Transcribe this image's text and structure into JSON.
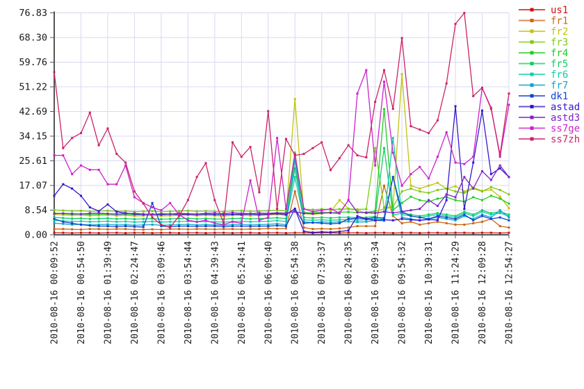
{
  "chart_data": {
    "type": "line",
    "title": "",
    "xlabel": "",
    "ylabel": "",
    "ylim": [
      0,
      76.83
    ],
    "grid": true,
    "legend_position": "top-right-outside",
    "colors": {
      "grid": "#d8d8f0",
      "axis": "#555555",
      "tick_label": "#1a1a1a",
      "background": "#ffffff"
    },
    "ytick_labels": [
      "0.00",
      "8.54",
      "17.07",
      "25.61",
      "34.15",
      "42.69",
      "51.22",
      "59.76",
      "68.30",
      "76.83"
    ],
    "ytick_values": [
      0,
      8.537,
      17.073,
      25.61,
      34.147,
      42.683,
      51.22,
      59.757,
      68.293,
      76.83
    ],
    "xtick_labels": [
      "2010-08-16 00:09:52",
      "2010-08-16 00:54:50",
      "2010-08-16 01:39:49",
      "2010-08-16 02:24:47",
      "2010-08-16 03:09:46",
      "2010-08-16 03:54:44",
      "2010-08-16 04:39:43",
      "2010-08-16 05:24:41",
      "2010-08-16 06:09:40",
      "2010-08-16 06:54:38",
      "2010-08-16 07:39:37",
      "2010-08-16 08:24:35",
      "2010-08-16 09:09:34",
      "2010-08-16 09:54:32",
      "2010-08-16 10:39:31",
      "2010-08-16 11:24:29",
      "2010-08-16 12:09:28",
      "2010-08-16 12:54:27"
    ],
    "points_per_tick": 3,
    "n_points": 52,
    "series": [
      {
        "name": "us1",
        "color": "#cc1111",
        "values": [
          0.7,
          0.7,
          0.6,
          0.7,
          0.7,
          0.6,
          0.7,
          0.7,
          0.6,
          0.7,
          0.7,
          0.6,
          0.7,
          0.7,
          0.6,
          0.7,
          0.7,
          0.6,
          0.7,
          0.7,
          0.6,
          0.7,
          0.7,
          0.6,
          0.7,
          0.7,
          0.6,
          0.7,
          0.7,
          0.6,
          0.7,
          0.7,
          0.6,
          0.7,
          0.7,
          0.6,
          0.7,
          0.7,
          0.6,
          0.7,
          0.7,
          0.6,
          0.7,
          0.7,
          0.6,
          0.7,
          0.7,
          0.6,
          0.7,
          0.7,
          0.6,
          0.7
        ]
      },
      {
        "name": "fr1",
        "color": "#cc6611",
        "values": [
          2,
          2,
          1.9,
          1.8,
          2,
          2,
          1.9,
          2,
          2,
          1.8,
          1.8,
          1.9,
          1.8,
          2,
          2,
          1.9,
          2,
          2,
          1.9,
          2,
          2,
          1.9,
          2,
          2,
          2.2,
          2.1,
          2.2,
          15,
          2.5,
          2,
          2.1,
          2,
          2.2,
          2.5,
          3,
          3,
          3,
          17,
          6.5,
          4,
          4.5,
          3.5,
          4,
          4.5,
          4,
          3.5,
          3.5,
          4,
          4.5,
          5.5,
          3,
          2.5
        ]
      },
      {
        "name": "fr2",
        "color": "#c2c211",
        "values": [
          7,
          6.9,
          6.7,
          6.8,
          6.6,
          6.7,
          6.8,
          6.6,
          6.7,
          6.5,
          6.6,
          6.7,
          6.5,
          6.6,
          6.7,
          6.8,
          6.6,
          6.7,
          6.6,
          6.5,
          6.7,
          6.8,
          6.6,
          6.7,
          6.8,
          7,
          6.7,
          47,
          7.3,
          7.1,
          7.3,
          8,
          12,
          9,
          8.5,
          7.5,
          8,
          9,
          9.5,
          55.6,
          17,
          16,
          17,
          18,
          15.9,
          16.8,
          15,
          16.4,
          15.2,
          15.6,
          13.2,
          9.2
        ]
      },
      {
        "name": "fr3",
        "color": "#7ecc11",
        "values": [
          8.6,
          8.4,
          8.2,
          8.3,
          8.1,
          8.2,
          8.3,
          8.1,
          8.2,
          8,
          8.1,
          8.2,
          8,
          8.1,
          8.2,
          8.3,
          8.1,
          8.2,
          8.1,
          8,
          8.2,
          8.3,
          8.1,
          8.2,
          8.3,
          8.5,
          8.2,
          28.5,
          8.9,
          8.7,
          8.9,
          8.7,
          8.9,
          9,
          8.8,
          8.9,
          30,
          9.5,
          9.7,
          15,
          16,
          15,
          14.5,
          15.5,
          16,
          15,
          14.5,
          16,
          15,
          16.5,
          15.5,
          14
        ]
      },
      {
        "name": "fr4",
        "color": "#22cc22",
        "values": [
          7.5,
          7.3,
          7.1,
          7.2,
          7,
          7.1,
          7.2,
          7,
          7.1,
          6.9,
          7,
          7.1,
          6.9,
          7,
          7.1,
          7.2,
          7,
          7.1,
          7,
          6.9,
          7.1,
          7.2,
          7,
          7.1,
          7.2,
          7.4,
          7.1,
          27.5,
          7.8,
          7.6,
          7.8,
          7.6,
          7.8,
          7.9,
          7.7,
          7.8,
          8.2,
          43.5,
          8.6,
          11,
          13.2,
          12,
          11.5,
          12.5,
          13,
          12,
          11.5,
          13,
          12,
          13.5,
          12.5,
          10.8
        ]
      },
      {
        "name": "fr5",
        "color": "#11cc66",
        "values": [
          6,
          5.8,
          5.6,
          5.7,
          5.5,
          5.6,
          5.7,
          5.5,
          5.6,
          5.4,
          5.5,
          5.6,
          5.4,
          5.5,
          5.6,
          5.7,
          5.5,
          5.6,
          5.5,
          5.4,
          5.6,
          5.7,
          5.5,
          5.6,
          5.7,
          5.9,
          5.6,
          23,
          6,
          5.8,
          6,
          5.8,
          6,
          6.1,
          5.9,
          6,
          6.4,
          30,
          6.8,
          7.5,
          7,
          6.5,
          7,
          7.5,
          7,
          6.5,
          8,
          7,
          8.5,
          7.5,
          8,
          7
        ]
      },
      {
        "name": "fr6",
        "color": "#11ccaa",
        "values": [
          5,
          4.8,
          4.6,
          4.7,
          4.5,
          4.6,
          4.7,
          4.5,
          4.6,
          4.4,
          4.5,
          4.6,
          4.4,
          4.5,
          4.6,
          4.7,
          4.5,
          4.6,
          4.5,
          4.4,
          4.6,
          4.7,
          4.5,
          4.6,
          4.7,
          4.9,
          4.6,
          20,
          5.2,
          5,
          5.2,
          5,
          5.2,
          5.3,
          5.1,
          5.2,
          5.6,
          5.4,
          33.5,
          7,
          6.5,
          6,
          6.5,
          7,
          6.5,
          6,
          7.5,
          6.5,
          8,
          7,
          7.5,
          6.5
        ]
      },
      {
        "name": "fr7",
        "color": "#11a2cc",
        "values": [
          4,
          3.8,
          3.5,
          3.6,
          3.4,
          3.5,
          3.6,
          3.4,
          3.5,
          3.3,
          3.4,
          3.5,
          3.3,
          3.4,
          3.5,
          3.6,
          3.4,
          3.5,
          3.4,
          3.3,
          3.5,
          3.6,
          3.4,
          3.5,
          3.6,
          3.8,
          3.5,
          26,
          4.5,
          4.2,
          4.5,
          4.3,
          4.5,
          4.6,
          4.4,
          4.5,
          5,
          4.8,
          20,
          6,
          5.5,
          5,
          5.5,
          6,
          5.5,
          5,
          6.5,
          5.5,
          7,
          6,
          8.5,
          6
        ]
      },
      {
        "name": "dk1",
        "color": "#1144cc",
        "values": [
          5.5,
          4.5,
          4,
          3.5,
          3.2,
          3,
          3,
          2.8,
          3,
          2.8,
          2.7,
          11,
          3,
          2.8,
          3,
          3,
          2.9,
          3,
          3,
          2.8,
          3,
          3,
          2.9,
          3,
          3,
          3.2,
          3,
          9,
          4,
          4.2,
          4,
          3.8,
          4,
          5.5,
          5.8,
          5.5,
          6,
          5.8,
          20,
          8,
          6.5,
          6,
          5.5,
          6.5,
          6,
          5.5,
          7,
          5,
          6.5,
          5.5,
          6,
          5
        ]
      },
      {
        "name": "astad",
        "color": "#3317cc",
        "values": [
          13.5,
          17.5,
          16,
          13.5,
          9.5,
          8.2,
          10.5,
          8,
          7.5,
          7.2,
          7,
          7.1,
          7,
          7.2,
          7,
          7.1,
          7,
          7.2,
          7,
          7,
          7.1,
          7,
          7.2,
          7,
          7.1,
          7.3,
          7,
          9,
          1.2,
          0.8,
          1,
          0.9,
          1.1,
          1.5,
          6.5,
          5.5,
          5,
          5.2,
          5,
          5.5,
          5.2,
          5,
          5.3,
          5.1,
          12,
          44.5,
          9,
          25,
          43,
          21,
          23,
          20
        ]
      },
      {
        "name": "astd3",
        "color": "#7e22cc",
        "values": [
          7.3,
          7.4,
          7.3,
          7.2,
          7.4,
          7.5,
          7.3,
          7.2,
          7.3,
          7.4,
          7.2,
          7.1,
          7.3,
          7.2,
          7.4,
          7.3,
          7.2,
          7.4,
          7.5,
          7.3,
          7.6,
          7.4,
          7.3,
          7.5,
          7.4,
          7.6,
          7.5,
          8,
          7.4,
          7.3,
          7.5,
          7.6,
          7.4,
          12,
          7.8,
          7.6,
          7.5,
          8,
          7.6,
          8,
          8.5,
          9,
          12,
          10,
          14,
          13,
          20,
          16,
          22,
          19,
          24,
          20
        ]
      },
      {
        "name": "ss7ge",
        "color": "#cc22cc",
        "values": [
          27.5,
          27.5,
          21,
          24,
          22.5,
          22.5,
          17.5,
          17.5,
          24,
          13,
          11,
          9.5,
          8.5,
          11,
          7,
          5,
          4.5,
          5,
          4,
          3.5,
          4.5,
          4,
          18.8,
          5,
          6,
          33.5,
          9,
          28,
          9,
          8,
          8.5,
          9,
          7.5,
          12,
          48.9,
          57,
          24,
          53,
          28.4,
          17,
          21,
          23.5,
          19.5,
          27,
          35.5,
          25,
          24.5,
          27,
          50.8,
          44,
          27,
          45
        ]
      },
      {
        "name": "ss7zh",
        "color": "#cc2266",
        "values": [
          56.3,
          30,
          33.5,
          35.2,
          42.3,
          31,
          36.8,
          28,
          25,
          15,
          10.8,
          6,
          3.5,
          2.5,
          6.5,
          12,
          20,
          24.8,
          12,
          4,
          32,
          27,
          30.4,
          14.7,
          42.8,
          9,
          33.2,
          27.5,
          28,
          30,
          32,
          22.4,
          26.5,
          31,
          27.5,
          26.8,
          46,
          57,
          43.6,
          68.1,
          37.6,
          36.4,
          35.2,
          39.6,
          52.4,
          73,
          76.8,
          48,
          50.9,
          43.6,
          27.7,
          48.9
        ]
      }
    ],
    "layout": {
      "plot_left": 78,
      "plot_right": 732,
      "plot_top": 18.5,
      "plot_bottom": 338,
      "legend_x": 746,
      "legend_y": 14,
      "legend_row_h": 15.5,
      "legend_sample_w": 38
    }
  }
}
